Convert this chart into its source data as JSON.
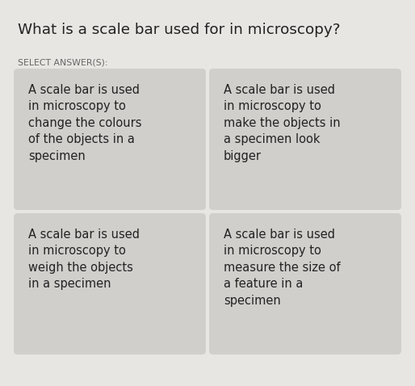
{
  "title": "What is a scale bar used for in microscopy?",
  "subtitle": "SELECT ANSWER(S):",
  "bg_color": "#e8e6e3",
  "card_color": "#d1cfcc",
  "title_color": "#222222",
  "subtitle_color": "#666666",
  "text_color": "#222222",
  "cards": [
    {
      "text": "A scale bar is used\nin microscopy to\nchange the colours\nof the objects in a\nspecimen",
      "row": 0,
      "col": 0
    },
    {
      "text": "A scale bar is used\nin microscopy to\nmake the objects in\na specimen look\nbigger",
      "row": 0,
      "col": 1
    },
    {
      "text": "A scale bar is used\nin microscopy to\nweigh the objects\nin a specimen",
      "row": 1,
      "col": 0
    },
    {
      "text": "A scale bar is used\nin microscopy to\nmeasure the size of\na feature in a\nspecimen",
      "row": 1,
      "col": 1
    }
  ]
}
